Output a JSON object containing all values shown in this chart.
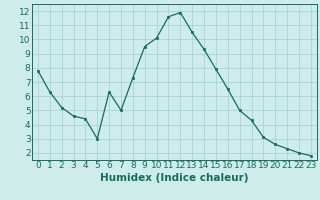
{
  "x": [
    0,
    1,
    2,
    3,
    4,
    5,
    6,
    7,
    8,
    9,
    10,
    11,
    12,
    13,
    14,
    15,
    16,
    17,
    18,
    19,
    20,
    21,
    22,
    23
  ],
  "y": [
    7.8,
    6.3,
    5.2,
    4.6,
    4.4,
    3.0,
    6.3,
    5.0,
    7.3,
    9.5,
    10.1,
    11.6,
    11.9,
    10.5,
    9.3,
    7.9,
    6.5,
    5.0,
    4.3,
    3.1,
    2.6,
    2.3,
    2.0,
    1.8
  ],
  "xlabel": "Humidex (Indice chaleur)",
  "xlim": [
    -0.5,
    23.5
  ],
  "ylim": [
    1.5,
    12.5
  ],
  "yticks": [
    2,
    3,
    4,
    5,
    6,
    7,
    8,
    9,
    10,
    11,
    12
  ],
  "xticks": [
    0,
    1,
    2,
    3,
    4,
    5,
    6,
    7,
    8,
    9,
    10,
    11,
    12,
    13,
    14,
    15,
    16,
    17,
    18,
    19,
    20,
    21,
    22,
    23
  ],
  "line_color": "#1a6b5a",
  "marker_color": "#1a6b5a",
  "bg_color": "#cdecea",
  "grid_color": "#a8d5d0",
  "tick_label_fontsize": 6.5,
  "xlabel_fontsize": 7.5
}
